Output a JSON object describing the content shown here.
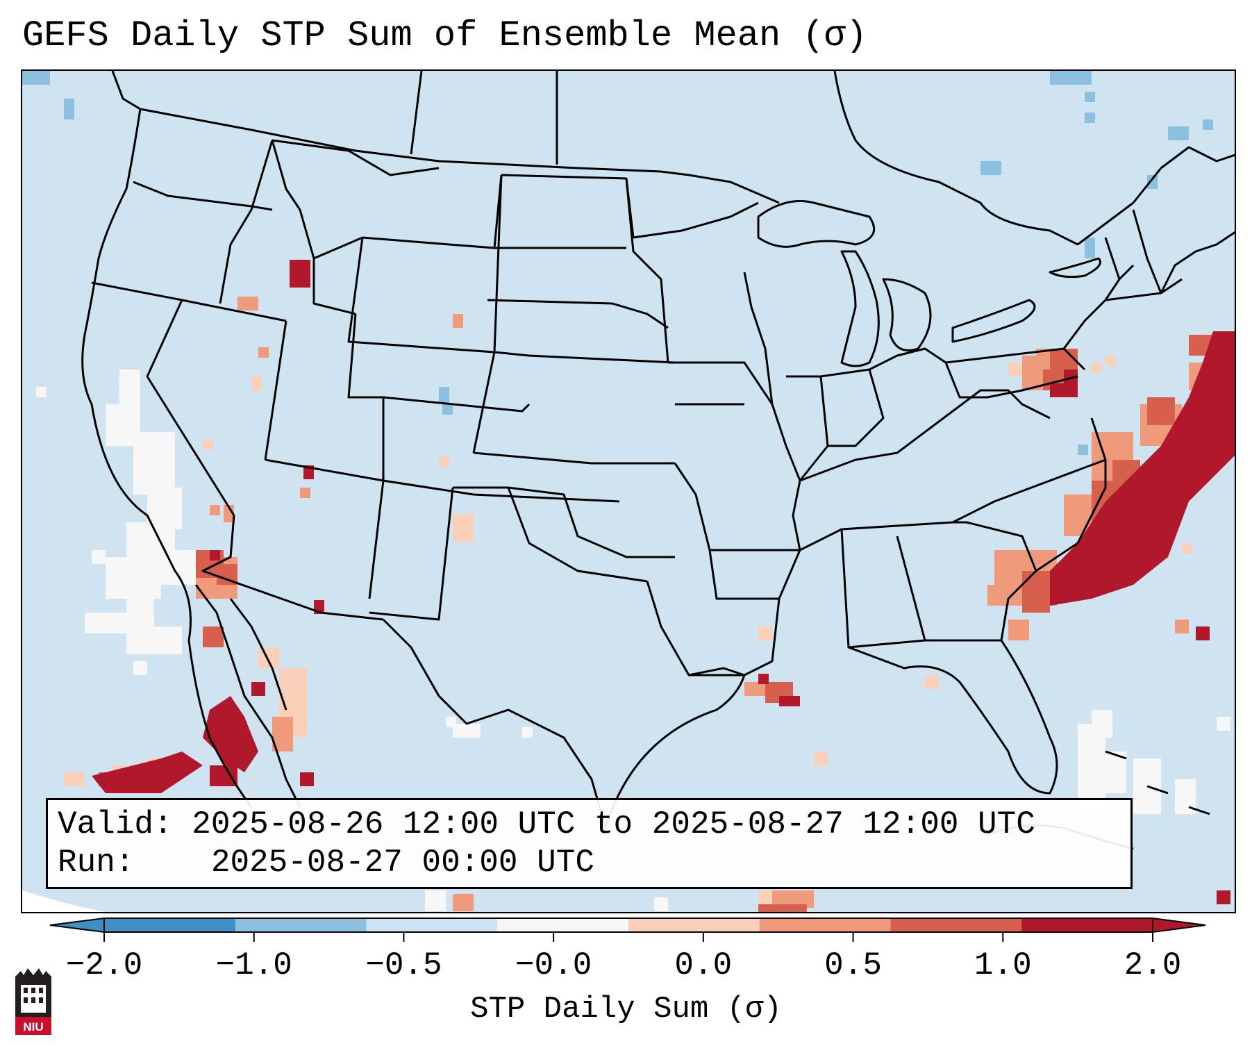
{
  "title": "GEFS Daily STP Sum of Ensemble Mean (σ)",
  "info": {
    "valid_label": "Valid:",
    "valid_value": "2025-08-26 12:00 UTC to 2025-08-27 12:00 UTC",
    "run_label": "Run:",
    "run_value": "2025-08-27 00:00 UTC"
  },
  "colorbar": {
    "label": "STP Daily Sum (σ)",
    "ticks": [
      "−2.0",
      "−1.0",
      "−0.5",
      "−0.0",
      "0.0",
      "0.5",
      "1.0",
      "2.0"
    ],
    "colors": [
      "#3f8fc5",
      "#8dc0de",
      "#cfe4f0",
      "#f7f7f7",
      "#fbd0b9",
      "#ef9a7a",
      "#d6604d",
      "#b2182b"
    ],
    "extend": "both"
  },
  "map": {
    "region": "Continental United States",
    "projection": "Lambert Conformal",
    "ocean_land_color": "#cfe4f0",
    "border_color": "#000000"
  },
  "logo": {
    "text": "NIU",
    "icon": "niu-building-logo"
  }
}
